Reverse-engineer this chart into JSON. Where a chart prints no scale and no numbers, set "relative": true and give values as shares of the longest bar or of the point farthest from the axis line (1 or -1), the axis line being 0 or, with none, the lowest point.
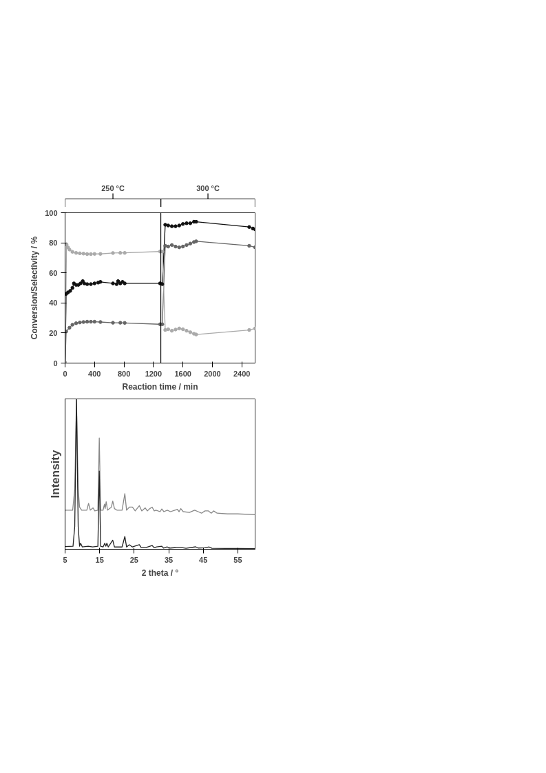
{
  "chart_data": [
    {
      "type": "line",
      "xlabel": "Reaction time / min",
      "ylabel": "Conversion/Selectivity / %",
      "annotations": [
        "250 °C",
        "300 °C"
      ],
      "xlim": [
        0,
        2580
      ],
      "ylim": [
        0,
        100
      ],
      "xticks": [
        0,
        400,
        800,
        1200,
        1600,
        2000,
        2400
      ],
      "yticks": [
        0,
        20,
        40,
        60,
        80,
        100
      ],
      "grid": false,
      "marker": "circle",
      "line_style": "solid",
      "ref_lines": [
        {
          "axis": "x",
          "value": 1300,
          "color": "#000000"
        }
      ],
      "series": [
        {
          "color": "#111111",
          "x": [
            0,
            15,
            40,
            70,
            100,
            120,
            150,
            180,
            210,
            240,
            260,
            300,
            350,
            400,
            450,
            480,
            650,
            700,
            720,
            750,
            780,
            810,
            1290,
            1320,
            1360,
            1400,
            1450,
            1500,
            1550,
            1600,
            1650,
            1700,
            1750,
            1780,
            2500,
            2550,
            2580
          ],
          "values": [
            0,
            46,
            47,
            48,
            50,
            53,
            52,
            52,
            53,
            54.5,
            53,
            52.5,
            52.5,
            53,
            53.5,
            54,
            53,
            52.5,
            54.5,
            53,
            54,
            53,
            53,
            52.5,
            92,
            91.5,
            91,
            91,
            91.5,
            92.5,
            93,
            93,
            94,
            94,
            90.5,
            89.5,
            89
          ]
        },
        {
          "color": "#666666",
          "x": [
            0,
            15,
            60,
            100,
            150,
            200,
            250,
            300,
            350,
            400,
            480,
            650,
            750,
            810,
            1290,
            1320,
            1360,
            1400,
            1450,
            1500,
            1550,
            1600,
            1650,
            1700,
            1750,
            1780,
            2500,
            2580
          ],
          "values": [
            0,
            21,
            23.5,
            25.5,
            26.5,
            27,
            27.3,
            27.5,
            27.5,
            27.5,
            27.3,
            26.8,
            26.8,
            26.7,
            25.8,
            25.8,
            78,
            77.5,
            78.5,
            77.5,
            77,
            77.5,
            78.5,
            79.5,
            80.5,
            81,
            78,
            77
          ]
        },
        {
          "color": "#aaaaaa",
          "x": [
            0,
            20,
            40,
            60,
            100,
            150,
            200,
            250,
            300,
            350,
            400,
            480,
            650,
            750,
            810,
            1290,
            1320,
            1360,
            1400,
            1450,
            1500,
            1550,
            1600,
            1650,
            1700,
            1750,
            1780,
            2500,
            2580
          ],
          "values": [
            0,
            79,
            77,
            75.5,
            74,
            73.3,
            73,
            72.8,
            72.5,
            72.5,
            72.6,
            72.6,
            73.2,
            73.3,
            73.3,
            74.2,
            74.2,
            22,
            22.5,
            21.5,
            22.3,
            23,
            22.5,
            21.5,
            20.5,
            19.5,
            19,
            22,
            23
          ]
        }
      ]
    },
    {
      "type": "line",
      "relative": true,
      "xlabel": "2 theta / °",
      "ylabel": "Intensity",
      "xlim": [
        5,
        60
      ],
      "xticks": [
        5,
        15,
        25,
        35,
        45,
        55
      ],
      "tick_labels": "x",
      "grid": false,
      "line_style": "solid",
      "series": [
        {
          "color": "#888888",
          "x": [
            5,
            7.2,
            7.8,
            8.3,
            8.8,
            9.2,
            9.8,
            11.3,
            11.8,
            12.3,
            13.1,
            13.6,
            14.5,
            14.9,
            15.3,
            16.0,
            16.4,
            16.6,
            16.9,
            17.3,
            18.4,
            18.8,
            19.3,
            20,
            21.5,
            22.3,
            22.8,
            23.6,
            24.5,
            25.3,
            26.5,
            27.2,
            28.2,
            28.8,
            29.5,
            30.2,
            30.8,
            31.3,
            32.5,
            33,
            33.6,
            34.6,
            35.5,
            37.5,
            38,
            38.5,
            39.2,
            41,
            42.5,
            43.5,
            44.5,
            45.5,
            46.5,
            47.3,
            48,
            49,
            52,
            55,
            60
          ],
          "values": [
            0.26,
            0.26,
            0.4,
            1.0,
            0.4,
            0.28,
            0.26,
            0.26,
            0.305,
            0.26,
            0.275,
            0.255,
            0.26,
            0.74,
            0.26,
            0.26,
            0.3,
            0.27,
            0.316,
            0.26,
            0.28,
            0.32,
            0.27,
            0.26,
            0.26,
            0.37,
            0.26,
            0.28,
            0.28,
            0.255,
            0.29,
            0.255,
            0.275,
            0.255,
            0.27,
            0.28,
            0.255,
            0.26,
            0.25,
            0.268,
            0.25,
            0.26,
            0.25,
            0.265,
            0.25,
            0.27,
            0.25,
            0.245,
            0.26,
            0.25,
            0.24,
            0.255,
            0.255,
            0.24,
            0.255,
            0.24,
            0.235,
            0.235,
            0.23
          ]
        },
        {
          "color": "#222222",
          "x": [
            5,
            7.3,
            7.8,
            8.3,
            8.8,
            9.2,
            9.5,
            10,
            11.7,
            13,
            14.5,
            14.9,
            15.3,
            16,
            16.5,
            16.8,
            17.1,
            17.5,
            18.8,
            19.3,
            21.5,
            22.3,
            22.8,
            23.6,
            24.5,
            26.5,
            27,
            28.5,
            30.2,
            30.8,
            31.5,
            33,
            33.5,
            34.5,
            35.5,
            37.5,
            38.5,
            40,
            42.8,
            43.5,
            45.5,
            46.7,
            47.5,
            51.5,
            55,
            60
          ],
          "values": [
            0.018,
            0.02,
            0.15,
            1.0,
            0.15,
            0.02,
            0.04,
            0.015,
            0.02,
            0.015,
            0.02,
            0.52,
            0.02,
            0.015,
            0.04,
            0.02,
            0.04,
            0.015,
            0.06,
            0.015,
            0.015,
            0.085,
            0.015,
            0.03,
            0.015,
            0.03,
            0.012,
            0.012,
            0.025,
            0.01,
            0.015,
            0.02,
            0.008,
            0.015,
            0.008,
            0.012,
            0.012,
            0.006,
            0.016,
            0.008,
            0.01,
            0.015,
            0.006,
            0.005,
            0.005,
            0.004
          ]
        }
      ]
    }
  ]
}
